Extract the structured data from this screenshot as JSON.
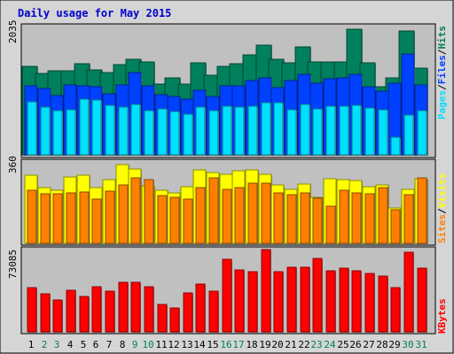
{
  "title": "Daily usage for May 2015",
  "colors": {
    "background": "#d5d5d5",
    "panel": "#c0c0c0",
    "title": "#0000cc",
    "hits": "#00805c",
    "files": "#0040ff",
    "pages": "#00e0ff",
    "visits": "#ffff00",
    "sites": "#ff8000",
    "kbytes": "#ff0000",
    "day_weekday": "#000000",
    "day_weekend": "#00805c"
  },
  "side_labels": {
    "pages": "Pages",
    "files": "Files",
    "hits": "Hits",
    "sites": "Sites",
    "visits": "Visits",
    "kbytes": "KBytes",
    "separator": "/"
  },
  "chart_data": {
    "type": "bar",
    "title": "Daily usage for May 2015",
    "categories": [
      "1",
      "2",
      "3",
      "4",
      "5",
      "6",
      "7",
      "8",
      "9",
      "10",
      "11",
      "12",
      "13",
      "14",
      "15",
      "16",
      "17",
      "18",
      "19",
      "20",
      "21",
      "22",
      "23",
      "24",
      "25",
      "26",
      "27",
      "28",
      "29",
      "30",
      "31"
    ],
    "weekend_days": [
      "2",
      "3",
      "9",
      "10",
      "16",
      "17",
      "23",
      "24",
      "30",
      "31"
    ],
    "panels": [
      {
        "name": "requests",
        "ymax": 2035,
        "ymax_label": "2035",
        "series": [
          {
            "name": "Hits",
            "values": [
              1410,
              1285,
              1335,
              1335,
              1445,
              1345,
              1310,
              1425,
              1515,
              1480,
              1125,
              1220,
              1120,
              1465,
              1260,
              1410,
              1445,
              1580,
              1747,
              1520,
              1460,
              1717,
              1475,
              1480,
              1470,
              1993,
              1460,
              1075,
              1215,
              1968,
              1380
            ]
          },
          {
            "name": "Files",
            "values": [
              1096,
              1049,
              941,
              1111,
              1100,
              1086,
              963,
              1105,
              1305,
              1091,
              949,
              924,
              890,
              1031,
              922,
              1100,
              1100,
              1180,
              1226,
              1073,
              1175,
              1276,
              1131,
              1208,
              1228,
              1283,
              1080,
              1012,
              1137,
              1598,
              1111
            ]
          },
          {
            "name": "Pages",
            "values": [
              843,
              762,
              703,
              721,
              890,
              866,
              787,
              763,
              806,
              700,
              725,
              687,
              640,
              752,
              707,
              767,
              752,
              765,
              829,
              826,
              720,
              802,
              731,
              772,
              770,
              783,
              747,
              720,
              287,
              627,
              702
            ]
          }
        ]
      },
      {
        "name": "visitors",
        "ymax": 360,
        "ymax_label": "360",
        "series": [
          {
            "name": "Visits",
            "values": [
              295,
              242,
              229,
              289,
              296,
              241,
              277,
              340,
              321,
              248,
              230,
              220,
              244,
              319,
              305,
              298,
              313,
              317,
              300,
              252,
              235,
              256,
              200,
              279,
              277,
              273,
              247,
              251,
              152,
              232,
              279
            ]
          },
          {
            "name": "Sites",
            "values": [
              230,
              216,
              215,
              219,
              223,
              192,
              225,
              251,
              283,
              276,
              206,
              201,
              192,
              241,
              284,
              235,
              240,
              262,
              262,
              220,
              210,
              219,
              197,
              160,
              230,
              218,
              214,
              240,
              145,
              212,
              283
            ]
          }
        ]
      },
      {
        "name": "volume",
        "ymax": 73085,
        "ymax_label": "73085",
        "series": [
          {
            "name": "KBytes",
            "values": [
              38300,
              32900,
              27900,
              36000,
              31100,
              39600,
              35400,
              43100,
              43100,
              39100,
              23800,
              21000,
              34100,
              41300,
              35200,
              63100,
              53500,
              52000,
              71700,
              52000,
              55800,
              55900,
              64000,
              52800,
              55700,
              52800,
              51100,
              48300,
              38500,
              68900,
              55600
            ]
          }
        ]
      }
    ]
  }
}
